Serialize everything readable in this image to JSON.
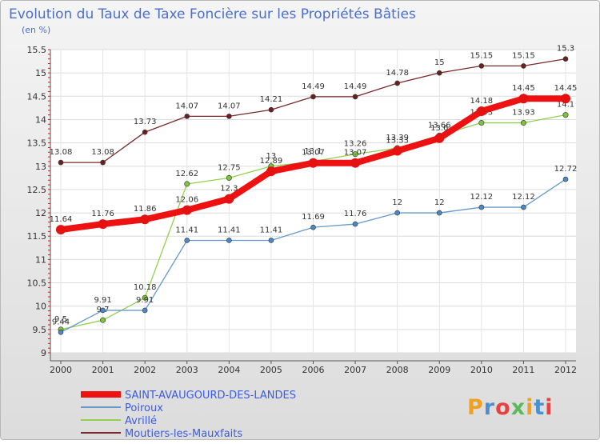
{
  "chart_data": {
    "type": "line",
    "title": "Evolution du Taux de Taxe Foncière sur les Propriétés Bâties",
    "subtitle": "(en %)",
    "xlabel": "",
    "ylabel": "(en %)",
    "categories": [
      "2000",
      "2001",
      "2002",
      "2003",
      "2004",
      "2005",
      "2006",
      "2007",
      "2008",
      "2009",
      "2010",
      "2011",
      "2012"
    ],
    "ylim": [
      9,
      15.5
    ],
    "yticks": [
      "9",
      "9.5",
      "10",
      "10.5",
      "11",
      "11.5",
      "12",
      "12.5",
      "13",
      "13.5",
      "14",
      "14.5",
      "15",
      "15.5"
    ],
    "grid": true,
    "series": [
      {
        "name": "Moutiers-les-Mauxfaits",
        "color": "#7a2a2a",
        "values": [
          13.08,
          13.08,
          13.73,
          14.07,
          14.07,
          14.21,
          14.49,
          14.49,
          14.78,
          15,
          15.15,
          15.15,
          15.3
        ],
        "labels": [
          "13.08",
          "13.08",
          "13.73",
          "14.07",
          "14.07",
          "14.21",
          "14.49",
          "14.49",
          "14.78",
          "15",
          "15.15",
          "15.15",
          "15.3"
        ]
      },
      {
        "name": "Avrillé",
        "color": "#92d050",
        "values": [
          9.5,
          9.7,
          10.18,
          12.62,
          12.75,
          13,
          13.1,
          13.26,
          13.39,
          13.66,
          13.93,
          13.93,
          14.1
        ],
        "labels": [
          "9.5",
          "9.7",
          "10.18",
          "12.62",
          "12.75",
          "13",
          "13.1",
          "13.26",
          "13.39",
          "13.66",
          "13.93",
          "13.93",
          "14.1"
        ]
      },
      {
        "name": "Poiroux",
        "color": "#6699cc",
        "values": [
          9.44,
          9.91,
          9.91,
          11.41,
          11.41,
          11.41,
          11.69,
          11.76,
          12,
          12,
          12.12,
          12.12,
          12.72
        ],
        "labels": [
          "9.44",
          "9.91",
          "9.91",
          "11.41",
          "11.41",
          "11.41",
          "11.69",
          "11.76",
          "12",
          "12",
          "12.12",
          "12.12",
          "12.72"
        ]
      },
      {
        "name": "SAINT-AVAUGOURD-DES-LANDES",
        "color": "#ee1111",
        "values": [
          11.64,
          11.76,
          11.86,
          12.06,
          12.3,
          12.89,
          13.07,
          13.07,
          13.33,
          13.6,
          14.18,
          14.45,
          14.45
        ],
        "labels": [
          "11.64",
          "11.76",
          "11.86",
          "12.06",
          "12.3",
          "12.89",
          "13.07",
          "13.07",
          "13.33",
          "13.6",
          "14.18",
          "14.45",
          "14.45"
        ]
      }
    ],
    "legend": [
      "SAINT-AVAUGOURD-DES-LANDES",
      "Poiroux",
      "Avrillé",
      "Moutiers-les-Mauxfaits"
    ],
    "legend_position": "bottom-left"
  },
  "brand": {
    "name": "Proxiti"
  }
}
